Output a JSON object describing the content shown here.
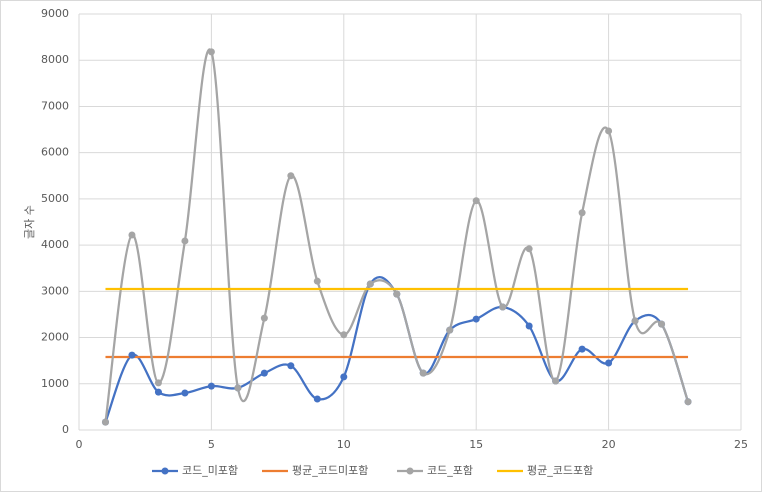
{
  "chart_data": {
    "type": "scatter-smooth",
    "y_label": "글자 수",
    "xlim": [
      0,
      25
    ],
    "xticks": [
      0,
      5,
      10,
      15,
      20,
      25
    ],
    "ylim": [
      0,
      9000
    ],
    "yticks": [
      0,
      1000,
      2000,
      3000,
      4000,
      5000,
      6000,
      7000,
      8000,
      9000
    ],
    "grid": true,
    "legend": "bottom",
    "series": [
      {
        "name": "코드_미포함",
        "color": "#4472c4",
        "markers": true,
        "x": [
          1,
          2,
          3,
          4,
          5,
          6,
          7,
          8,
          9,
          10,
          11,
          12,
          13,
          14,
          15,
          16,
          17,
          18,
          19,
          20,
          21,
          22,
          23
        ],
        "values": [
          170,
          1620,
          820,
          800,
          950,
          910,
          1230,
          1390,
          670,
          1150,
          3160,
          2940,
          1230,
          2160,
          2400,
          2660,
          2250,
          1060,
          1750,
          1450,
          2360,
          2290,
          610
        ]
      },
      {
        "name": "평균_코드미포함",
        "color": "#ed7d31",
        "markers": false,
        "x": [
          1,
          23
        ],
        "values": [
          1580,
          1580
        ]
      },
      {
        "name": "코드_포함",
        "color": "#a5a5a5",
        "markers": true,
        "x": [
          1,
          2,
          3,
          4,
          5,
          6,
          7,
          8,
          9,
          10,
          11,
          12,
          13,
          14,
          15,
          16,
          17,
          18,
          19,
          20,
          21,
          22,
          23
        ],
        "values": [
          170,
          4220,
          1020,
          4090,
          8180,
          910,
          2420,
          5500,
          3220,
          2060,
          3160,
          2940,
          1230,
          2160,
          4960,
          2660,
          3920,
          1060,
          4700,
          6470,
          2360,
          2290,
          610
        ]
      },
      {
        "name": "평균_코드포함",
        "color": "#ffc000",
        "markers": false,
        "x": [
          1,
          23
        ],
        "values": [
          3050,
          3050
        ]
      }
    ]
  }
}
